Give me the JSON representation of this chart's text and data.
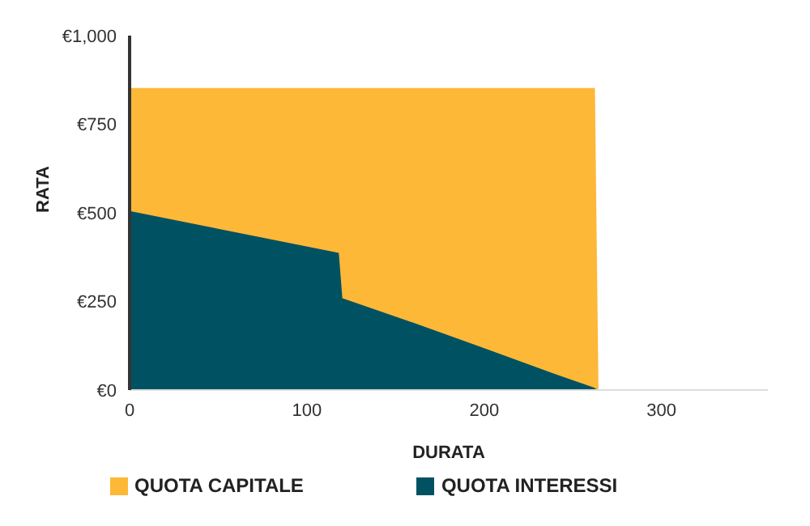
{
  "chart_data": {
    "type": "area",
    "stacked": true,
    "xlabel": "DURATA",
    "ylabel": "RATA",
    "x": [
      0,
      50,
      118,
      120,
      160,
      200,
      240,
      262,
      264,
      300,
      360
    ],
    "series": [
      {
        "name": "QUOTA INTERESSI",
        "color": "#005262",
        "values": [
          505,
          455,
          387,
          259,
          190,
          118,
          45,
          7,
          0,
          0,
          0
        ]
      },
      {
        "name": "QUOTA CAPITALE",
        "color": "#fdb838",
        "values": [
          345,
          395,
          463,
          591,
          660,
          732,
          805,
          843,
          0,
          0,
          0
        ]
      }
    ],
    "xlim": [
      0,
      360
    ],
    "xticks": [
      0,
      100,
      200,
      300
    ],
    "ylim": [
      0,
      1000
    ],
    "yticks": [
      {
        "value": 0,
        "label": "€0"
      },
      {
        "value": 250,
        "label": "€250"
      },
      {
        "value": 500,
        "label": "€500"
      },
      {
        "value": 750,
        "label": "€750"
      },
      {
        "value": 1000,
        "label": "€1,000"
      }
    ],
    "grid": false,
    "legend": "bottom left"
  }
}
